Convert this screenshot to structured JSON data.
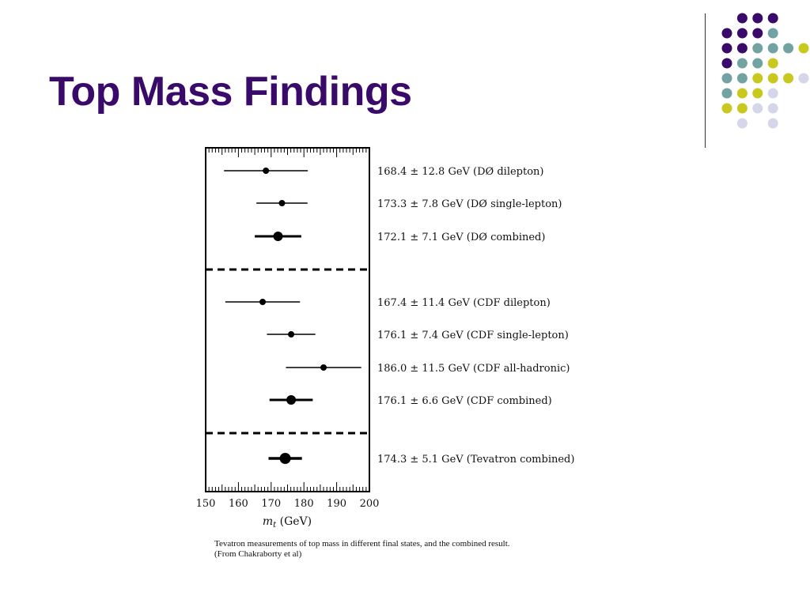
{
  "slide": {
    "title": "Top Mass Findings",
    "caption_lines": [
      "Tevatron measurements of top mass in different final states, and the combined result.",
      "(From Chakraborty et al)"
    ]
  },
  "theme": {
    "title_color": "#3a0a6b",
    "dot_colors": {
      "purple": "#3a0a6b",
      "teal": "#73a2a2",
      "yellow": "#c8c81e",
      "lavender": "#d6d6ea"
    },
    "dot_pattern": [
      "_ppp__",
      "pppt__",
      "ppttty",
      "ptty__",
      "ttyyyl",
      "tyyl__",
      "yyll__",
      "_l_l__"
    ]
  },
  "chart_data": {
    "type": "scatter",
    "subtype": "error-bar",
    "xlabel": "m_t (GeV)",
    "xlabel_main": "m",
    "xlabel_sub": "t",
    "xlabel_unit": " (GeV)",
    "xlim": [
      150,
      200
    ],
    "xticks": [
      150,
      160,
      170,
      180,
      190,
      200
    ],
    "minor_tick_step": 1,
    "grid": false,
    "separators_after_groups": true,
    "groups": [
      {
        "name": "DØ",
        "measurements": [
          {
            "value": 168.4,
            "error": 12.8,
            "label": "168.4 ± 12.8 GeV (DØ dilepton)",
            "combined": false
          },
          {
            "value": 173.3,
            "error": 7.8,
            "label": "173.3 ± 7.8 GeV (DØ single-lepton)",
            "combined": false
          },
          {
            "value": 172.1,
            "error": 7.1,
            "label": "172.1 ± 7.1 GeV (DØ combined)",
            "combined": true
          }
        ]
      },
      {
        "name": "CDF",
        "measurements": [
          {
            "value": 167.4,
            "error": 11.4,
            "label": "167.4 ± 11.4 GeV (CDF dilepton)",
            "combined": false
          },
          {
            "value": 176.1,
            "error": 7.4,
            "label": "176.1 ± 7.4 GeV (CDF single-lepton)",
            "combined": false
          },
          {
            "value": 186.0,
            "error": 11.5,
            "label": "186.0 ± 11.5 GeV (CDF all-hadronic)",
            "combined": false
          },
          {
            "value": 176.1,
            "error": 6.6,
            "label": "176.1 ± 6.6 GeV (CDF combined)",
            "combined": true
          }
        ]
      },
      {
        "name": "Tevatron",
        "measurements": [
          {
            "value": 174.3,
            "error": 5.1,
            "label": "174.3 ± 5.1 GeV (Tevatron combined)",
            "combined": true,
            "emphasis": true
          }
        ]
      }
    ]
  }
}
